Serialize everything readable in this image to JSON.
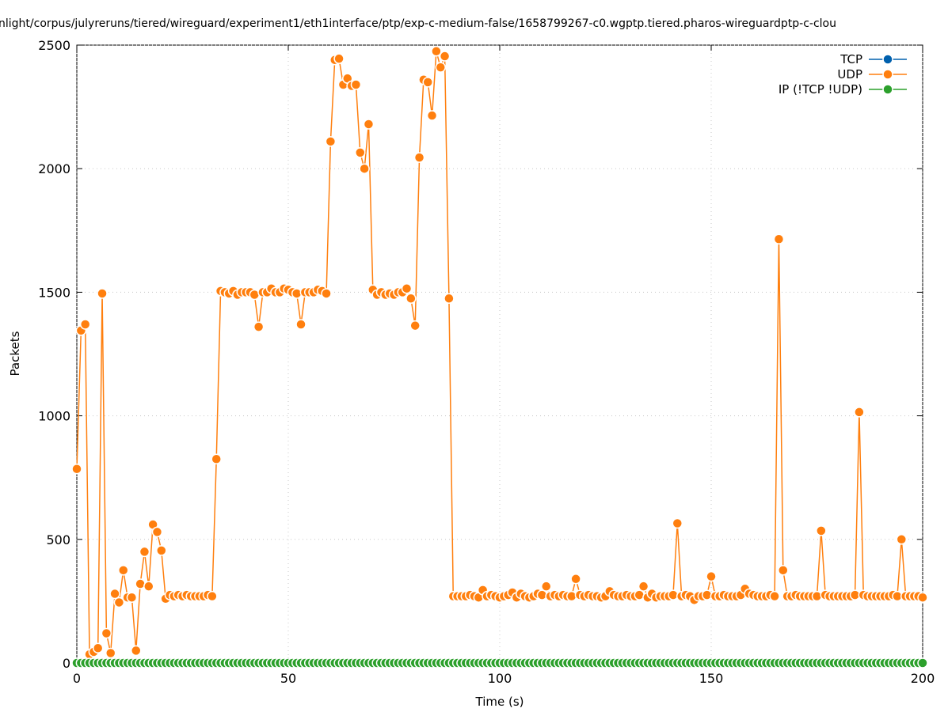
{
  "chart_data": {
    "type": "line",
    "title": "nlight/corpus/julyreruns/tiered/wireguard/experiment1/eth1interface/ptp/exp-c-medium-false/1658799267-c0.wgptp.tiered.pharos-wireguardptp-c-clou",
    "x_label": "Time (s)",
    "y_label": "Packets",
    "xlim": [
      0,
      200
    ],
    "xticks": [
      0,
      50,
      100,
      150,
      200
    ],
    "ylim": [
      0,
      2500
    ],
    "yticks": [
      0,
      500,
      1000,
      1500,
      2000,
      2500
    ],
    "grid": true,
    "legend": "upper right",
    "x": [
      0,
      1,
      2,
      3,
      4,
      5,
      6,
      7,
      8,
      9,
      10,
      11,
      12,
      13,
      14,
      15,
      16,
      17,
      18,
      19,
      20,
      21,
      22,
      23,
      24,
      25,
      26,
      27,
      28,
      29,
      30,
      31,
      32,
      33,
      34,
      35,
      36,
      37,
      38,
      39,
      40,
      41,
      42,
      43,
      44,
      45,
      46,
      47,
      48,
      49,
      50,
      51,
      52,
      53,
      54,
      55,
      56,
      57,
      58,
      59,
      60,
      61,
      62,
      63,
      64,
      65,
      66,
      67,
      68,
      69,
      70,
      71,
      72,
      73,
      74,
      75,
      76,
      77,
      78,
      79,
      80,
      81,
      82,
      83,
      84,
      85,
      86,
      87,
      88,
      89,
      90,
      91,
      92,
      93,
      94,
      95,
      96,
      97,
      98,
      99,
      100,
      101,
      102,
      103,
      104,
      105,
      106,
      107,
      108,
      109,
      110,
      111,
      112,
      113,
      114,
      115,
      116,
      117,
      118,
      119,
      120,
      121,
      122,
      123,
      124,
      125,
      126,
      127,
      128,
      129,
      130,
      131,
      132,
      133,
      134,
      135,
      136,
      137,
      138,
      139,
      140,
      141,
      142,
      143,
      144,
      145,
      146,
      147,
      148,
      149,
      150,
      151,
      152,
      153,
      154,
      155,
      156,
      157,
      158,
      159,
      160,
      161,
      162,
      163,
      164,
      165,
      166,
      167,
      168,
      169,
      170,
      171,
      172,
      173,
      174,
      175,
      176,
      177,
      178,
      179,
      180,
      181,
      182,
      183,
      184,
      185,
      186,
      187,
      188,
      189,
      190,
      191,
      192,
      193,
      194,
      195,
      196,
      197,
      198,
      199,
      200
    ],
    "series": [
      {
        "name": "TCP",
        "color": "#0060ad",
        "values": [
          0,
          0,
          0,
          0,
          0,
          0,
          0,
          0,
          0,
          0,
          0,
          0,
          0,
          0,
          0,
          0,
          0,
          0,
          0,
          0,
          0,
          0,
          0,
          0,
          0,
          0,
          0,
          0,
          0,
          0,
          0,
          0,
          0,
          0,
          0,
          0,
          0,
          0,
          0,
          0,
          0,
          0,
          0,
          0,
          0,
          0,
          0,
          0,
          0,
          0,
          0,
          0,
          0,
          0,
          0,
          0,
          0,
          0,
          0,
          0,
          0,
          0,
          0,
          0,
          0,
          0,
          0,
          0,
          0,
          0,
          0,
          0,
          0,
          0,
          0,
          0,
          0,
          0,
          0,
          0,
          0,
          0,
          0,
          0,
          0,
          0,
          0,
          0,
          0,
          0,
          0,
          0,
          0,
          0,
          0,
          0,
          0,
          0,
          0,
          0,
          0,
          0,
          0,
          0,
          0,
          0,
          0,
          0,
          0,
          0,
          0,
          0,
          0,
          0,
          0,
          0,
          0,
          0,
          0,
          0,
          0,
          0,
          0,
          0,
          0,
          0,
          0,
          0,
          0,
          0,
          0,
          0,
          0,
          0,
          0,
          0,
          0,
          0,
          0,
          0,
          0,
          0,
          0,
          0,
          0,
          0,
          0,
          0,
          0,
          0,
          0,
          0,
          0,
          0,
          0,
          0,
          0,
          0,
          0,
          0,
          0,
          0,
          0,
          0,
          0,
          0,
          0,
          0,
          0,
          0,
          0,
          0,
          0,
          0,
          0,
          0,
          0,
          0,
          0,
          0,
          0,
          0,
          0,
          0,
          0,
          0,
          0,
          0,
          0,
          0,
          0,
          0,
          0,
          0,
          0,
          0,
          0,
          0,
          0,
          0,
          0
        ]
      },
      {
        "name": "UDP",
        "color": "#ff7f0e",
        "values": [
          785,
          1345,
          1370,
          35,
          45,
          60,
          1495,
          120,
          40,
          280,
          245,
          375,
          265,
          265,
          50,
          320,
          450,
          310,
          560,
          530,
          455,
          260,
          275,
          270,
          275,
          270,
          275,
          270,
          270,
          270,
          270,
          275,
          270,
          825,
          1505,
          1500,
          1495,
          1505,
          1490,
          1500,
          1500,
          1500,
          1490,
          1360,
          1500,
          1500,
          1515,
          1500,
          1500,
          1515,
          1510,
          1500,
          1495,
          1370,
          1500,
          1500,
          1500,
          1510,
          1505,
          1495,
          2110,
          2440,
          2445,
          2340,
          2365,
          2335,
          2340,
          2065,
          2000,
          2180,
          1510,
          1490,
          1500,
          1490,
          1495,
          1490,
          1500,
          1500,
          1515,
          1475,
          1365,
          2045,
          2360,
          2350,
          2215,
          2475,
          2410,
          2455,
          1475,
          270,
          270,
          270,
          270,
          275,
          270,
          265,
          295,
          270,
          275,
          270,
          265,
          270,
          275,
          285,
          265,
          280,
          270,
          265,
          270,
          280,
          275,
          310,
          270,
          275,
          270,
          275,
          270,
          270,
          340,
          275,
          270,
          275,
          270,
          270,
          265,
          270,
          290,
          275,
          270,
          270,
          275,
          270,
          270,
          275,
          310,
          265,
          280,
          265,
          270,
          270,
          270,
          275,
          565,
          270,
          275,
          270,
          255,
          270,
          270,
          275,
          350,
          270,
          270,
          275,
          270,
          270,
          270,
          275,
          300,
          280,
          275,
          270,
          270,
          270,
          275,
          270,
          1715,
          375,
          270,
          270,
          275,
          270,
          270,
          270,
          270,
          270,
          535,
          275,
          270,
          270,
          270,
          270,
          270,
          270,
          275,
          1015,
          275,
          270,
          270,
          270,
          270,
          270,
          270,
          275,
          270,
          500,
          270,
          270,
          270,
          270,
          265
        ]
      },
      {
        "name": "IP (!TCP  !UDP)",
        "color": "#2ca02c",
        "values": [
          0,
          0,
          0,
          0,
          0,
          0,
          0,
          0,
          0,
          0,
          0,
          0,
          0,
          0,
          0,
          0,
          0,
          0,
          0,
          0,
          0,
          0,
          0,
          0,
          0,
          0,
          0,
          0,
          0,
          0,
          0,
          0,
          0,
          0,
          0,
          0,
          0,
          0,
          0,
          0,
          0,
          0,
          0,
          0,
          0,
          0,
          0,
          0,
          0,
          0,
          0,
          0,
          0,
          0,
          0,
          0,
          0,
          0,
          0,
          0,
          0,
          0,
          0,
          0,
          0,
          0,
          0,
          0,
          0,
          0,
          0,
          0,
          0,
          0,
          0,
          0,
          0,
          0,
          0,
          0,
          0,
          0,
          0,
          0,
          0,
          0,
          0,
          0,
          0,
          0,
          0,
          0,
          0,
          0,
          0,
          0,
          0,
          0,
          0,
          0,
          0,
          0,
          0,
          0,
          0,
          0,
          0,
          0,
          0,
          0,
          0,
          0,
          0,
          0,
          0,
          0,
          0,
          0,
          0,
          0,
          0,
          0,
          0,
          0,
          0,
          0,
          0,
          0,
          0,
          0,
          0,
          0,
          0,
          0,
          0,
          0,
          0,
          0,
          0,
          0,
          0,
          0,
          0,
          0,
          0,
          0,
          0,
          0,
          0,
          0,
          0,
          0,
          0,
          0,
          0,
          0,
          0,
          0,
          0,
          0,
          0,
          0,
          0,
          0,
          0,
          0,
          0,
          0,
          0,
          0,
          0,
          0,
          0,
          0,
          0,
          0,
          0,
          0,
          0,
          0,
          0,
          0,
          0,
          0,
          0,
          0,
          0,
          0,
          0,
          0,
          0,
          0,
          0,
          0,
          0,
          0,
          0,
          0,
          0,
          0,
          0
        ]
      }
    ]
  }
}
